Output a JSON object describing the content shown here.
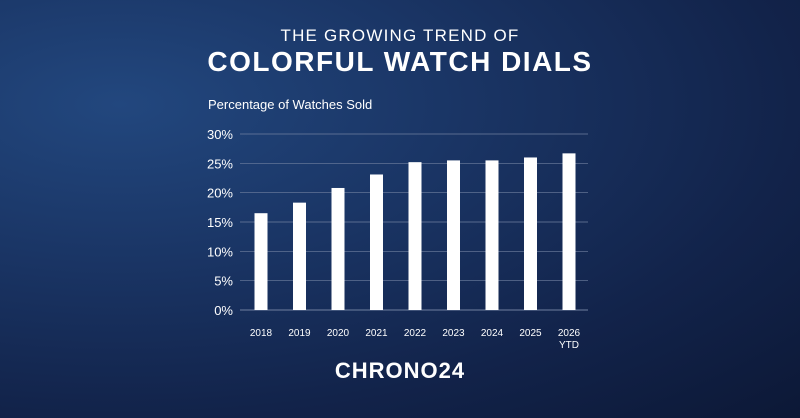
{
  "header": {
    "subtitle": "THE GROWING TREND OF",
    "title": "COLORFUL WATCH DIALS"
  },
  "brand": {
    "logo_text": "CHRONO24"
  },
  "chart_data": {
    "type": "bar",
    "title": "COLORFUL WATCH DIALS",
    "subtitle": "THE GROWING TREND OF",
    "ylabel": "Percentage of Watches Sold",
    "xlabel": "",
    "categories": [
      "2018",
      "2019",
      "2020",
      "2021",
      "2022",
      "2023",
      "2024",
      "2025",
      "2026\nYTD"
    ],
    "values": [
      16.5,
      18.3,
      20.8,
      23.1,
      25.2,
      25.5,
      25.5,
      26.0,
      26.7
    ],
    "yticks": [
      "0%",
      "5%",
      "10%",
      "15%",
      "20%",
      "25%",
      "30%"
    ],
    "ylim": [
      0,
      30
    ],
    "grid": true,
    "colors": {
      "bar": "#ffffff",
      "grid": "#6f7f9f"
    }
  }
}
